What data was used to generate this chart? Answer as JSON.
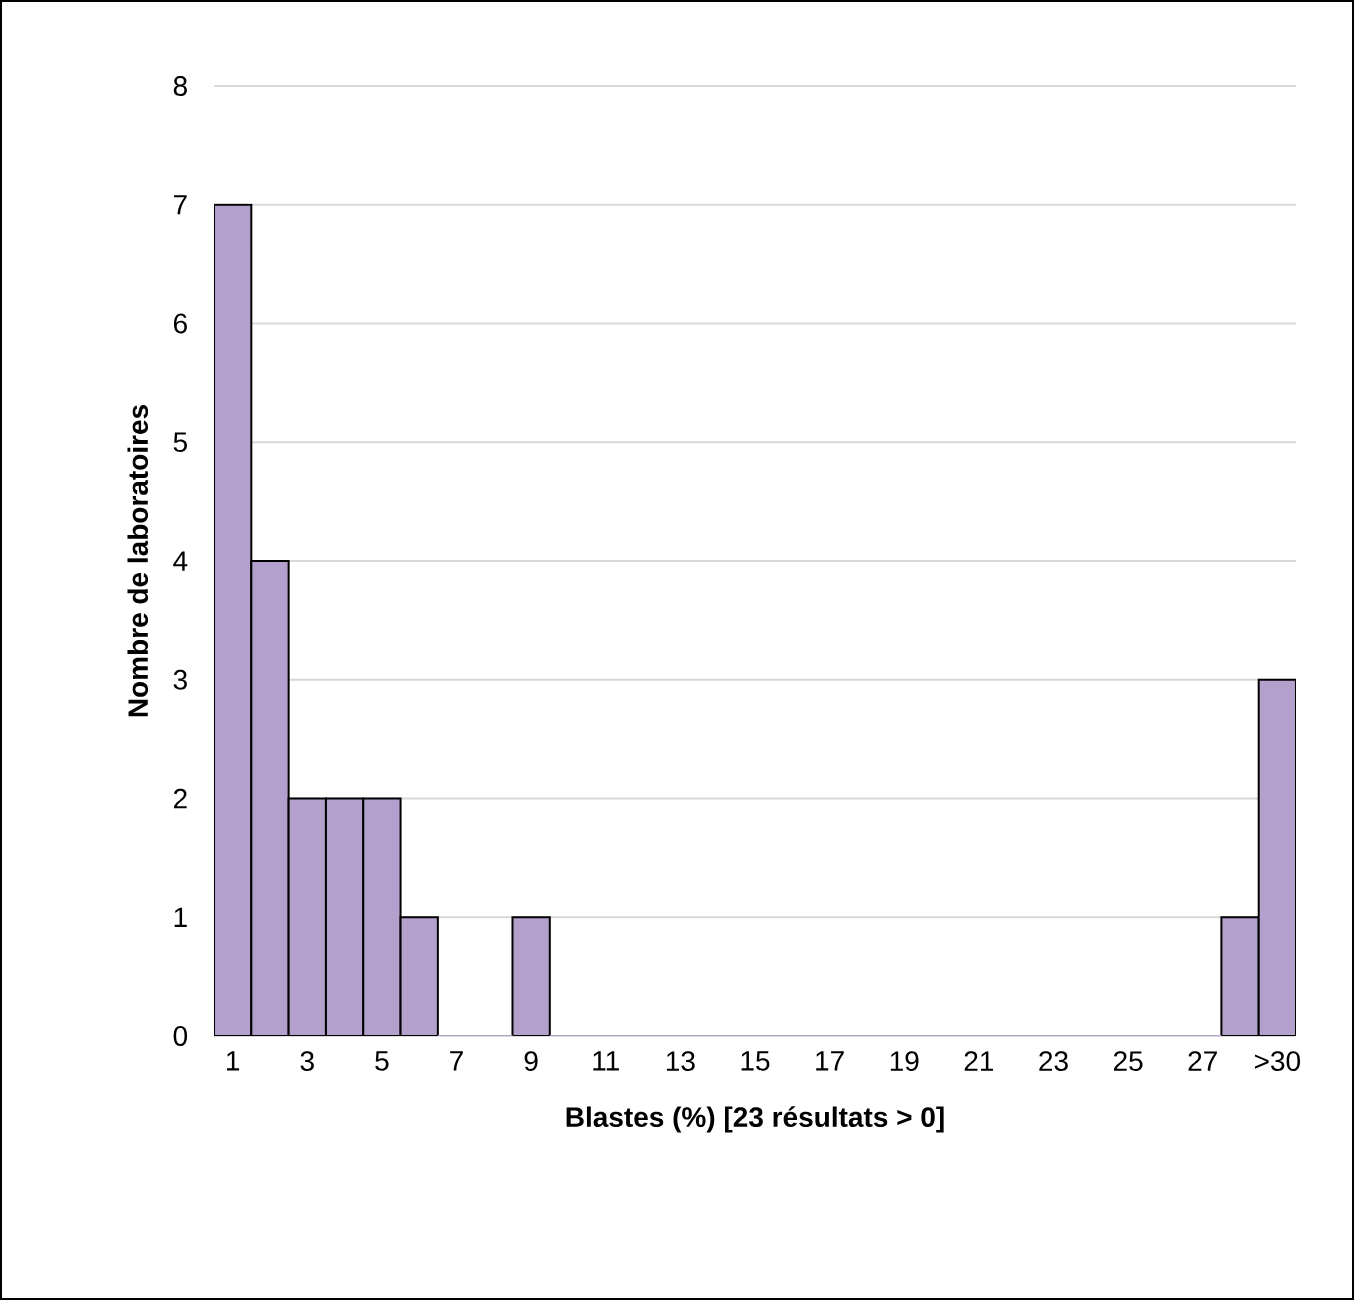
{
  "chart_data": {
    "type": "bar",
    "xlabel": "Blastes (%) [23 résultats > 0]",
    "ylabel": "Nombre de laboratoires",
    "categories": [
      "1",
      null,
      "3",
      null,
      "5",
      null,
      "7",
      null,
      "9",
      null,
      "11",
      null,
      "13",
      null,
      "15",
      null,
      "17",
      null,
      "19",
      null,
      "21",
      null,
      "23",
      null,
      "25",
      null,
      "27",
      null,
      ">30"
    ],
    "values": [
      7,
      4,
      2,
      2,
      2,
      1,
      0,
      0,
      1,
      0,
      0,
      0,
      0,
      0,
      0,
      0,
      0,
      0,
      0,
      0,
      0,
      0,
      0,
      0,
      0,
      0,
      0,
      1,
      3
    ],
    "color": "#b4a0cc",
    "ylim": [
      0,
      8
    ],
    "yticks": [
      0,
      1,
      2,
      3,
      4,
      5,
      6,
      7,
      8
    ],
    "grid": "y"
  }
}
